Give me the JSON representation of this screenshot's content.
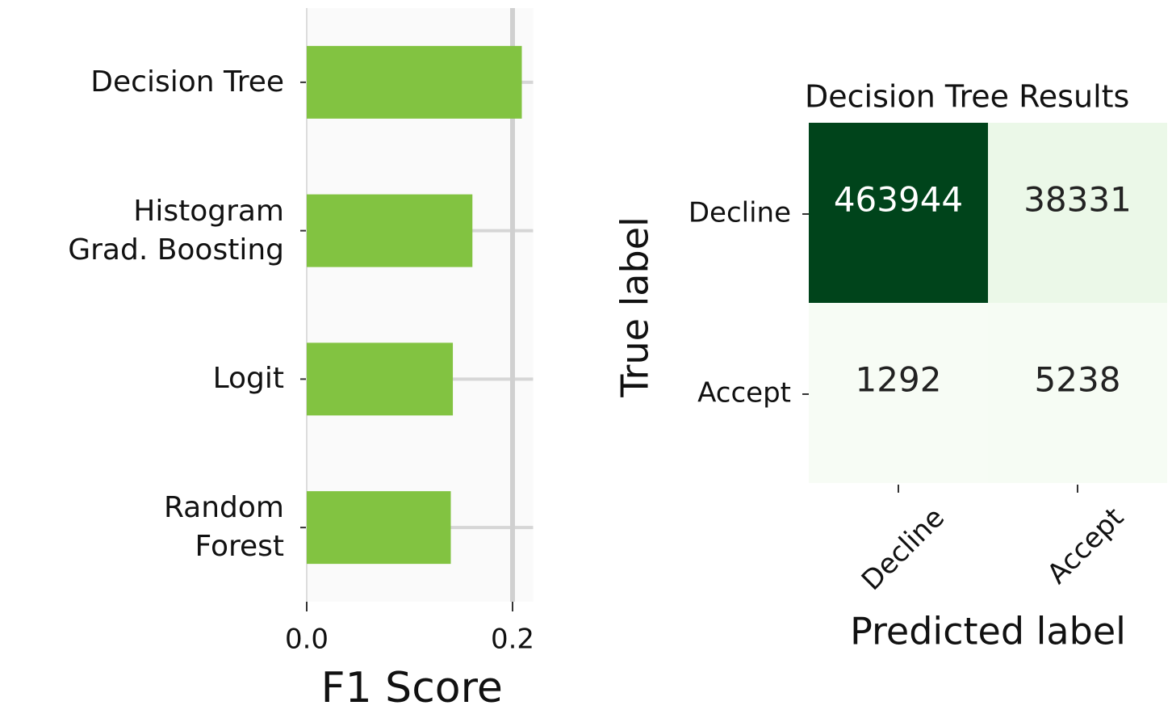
{
  "chart_data": [
    {
      "type": "barh",
      "categories": [
        "Decision Tree",
        "Histogram\nGrad. Boosting",
        "Logit",
        "Random\nForest"
      ],
      "values": [
        0.209,
        0.161,
        0.142,
        0.14
      ],
      "color": "#82c341",
      "xlabel": "F1 Score",
      "xlim": [
        0,
        0.22
      ],
      "xticks": [
        {
          "value": 0,
          "label": "0.0"
        },
        {
          "value": 0.2,
          "label": "0.2"
        }
      ],
      "grid": true
    },
    {
      "type": "heatmap",
      "title": "Decision Tree Results",
      "x_categories": [
        "Decline",
        "Accept"
      ],
      "y_categories": [
        "Decline",
        "Accept"
      ],
      "values": [
        [
          463944,
          38331
        ],
        [
          1292,
          5238
        ]
      ],
      "xlabel": "Predicted label",
      "ylabel": "True label",
      "cmap": "Greens"
    }
  ]
}
